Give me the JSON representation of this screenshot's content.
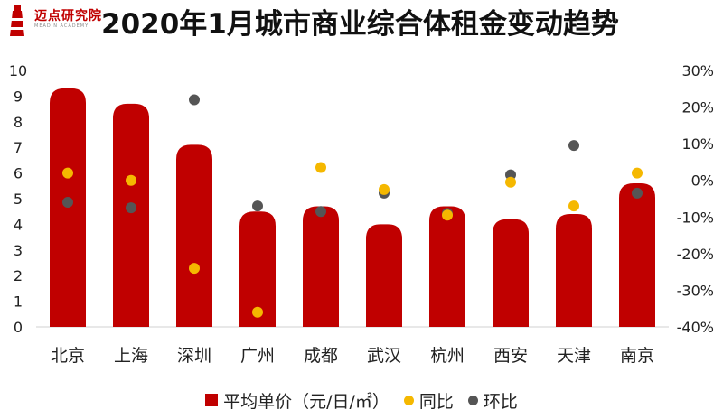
{
  "logo": {
    "text": "迈点研究院",
    "sub": "MEADIN ACADEMY"
  },
  "colors": {
    "bar": "#c00000",
    "yoy": "#f5b800",
    "mom": "#555555"
  },
  "chart_data": {
    "type": "bar",
    "title": "2020年1月城市商业综合体租金变动趋势",
    "categories": [
      "北京",
      "上海",
      "深圳",
      "广州",
      "成都",
      "武汉",
      "杭州",
      "西安",
      "天津",
      "南京"
    ],
    "series": [
      {
        "name": "平均单价（元/日/㎡）",
        "type": "bar",
        "axis": "left",
        "values": [
          9.3,
          8.7,
          7.1,
          4.5,
          4.7,
          4.0,
          4.7,
          4.2,
          4.4,
          5.6
        ]
      },
      {
        "name": "同比",
        "type": "scatter",
        "axis": "right",
        "unit": "%",
        "values": [
          2.0,
          0.0,
          -24.0,
          -36.0,
          3.5,
          -2.5,
          -9.5,
          -0.5,
          -7.0,
          2.0
        ]
      },
      {
        "name": "环比",
        "type": "scatter",
        "axis": "right",
        "unit": "%",
        "values": [
          -6.0,
          -7.5,
          22.0,
          -7.0,
          -8.5,
          -3.5,
          -9.0,
          1.5,
          9.5,
          -3.5
        ]
      }
    ],
    "left_axis": {
      "min": 0,
      "max": 10,
      "ticks": [
        "0",
        "1",
        "2",
        "3",
        "4",
        "5",
        "6",
        "7",
        "8",
        "9",
        "10"
      ]
    },
    "right_axis": {
      "min": -40,
      "max": 30,
      "ticks": [
        "-40%",
        "-30%",
        "-20%",
        "-10%",
        "0%",
        "10%",
        "20%",
        "30%"
      ]
    },
    "legend_position": "bottom",
    "grid": false
  }
}
